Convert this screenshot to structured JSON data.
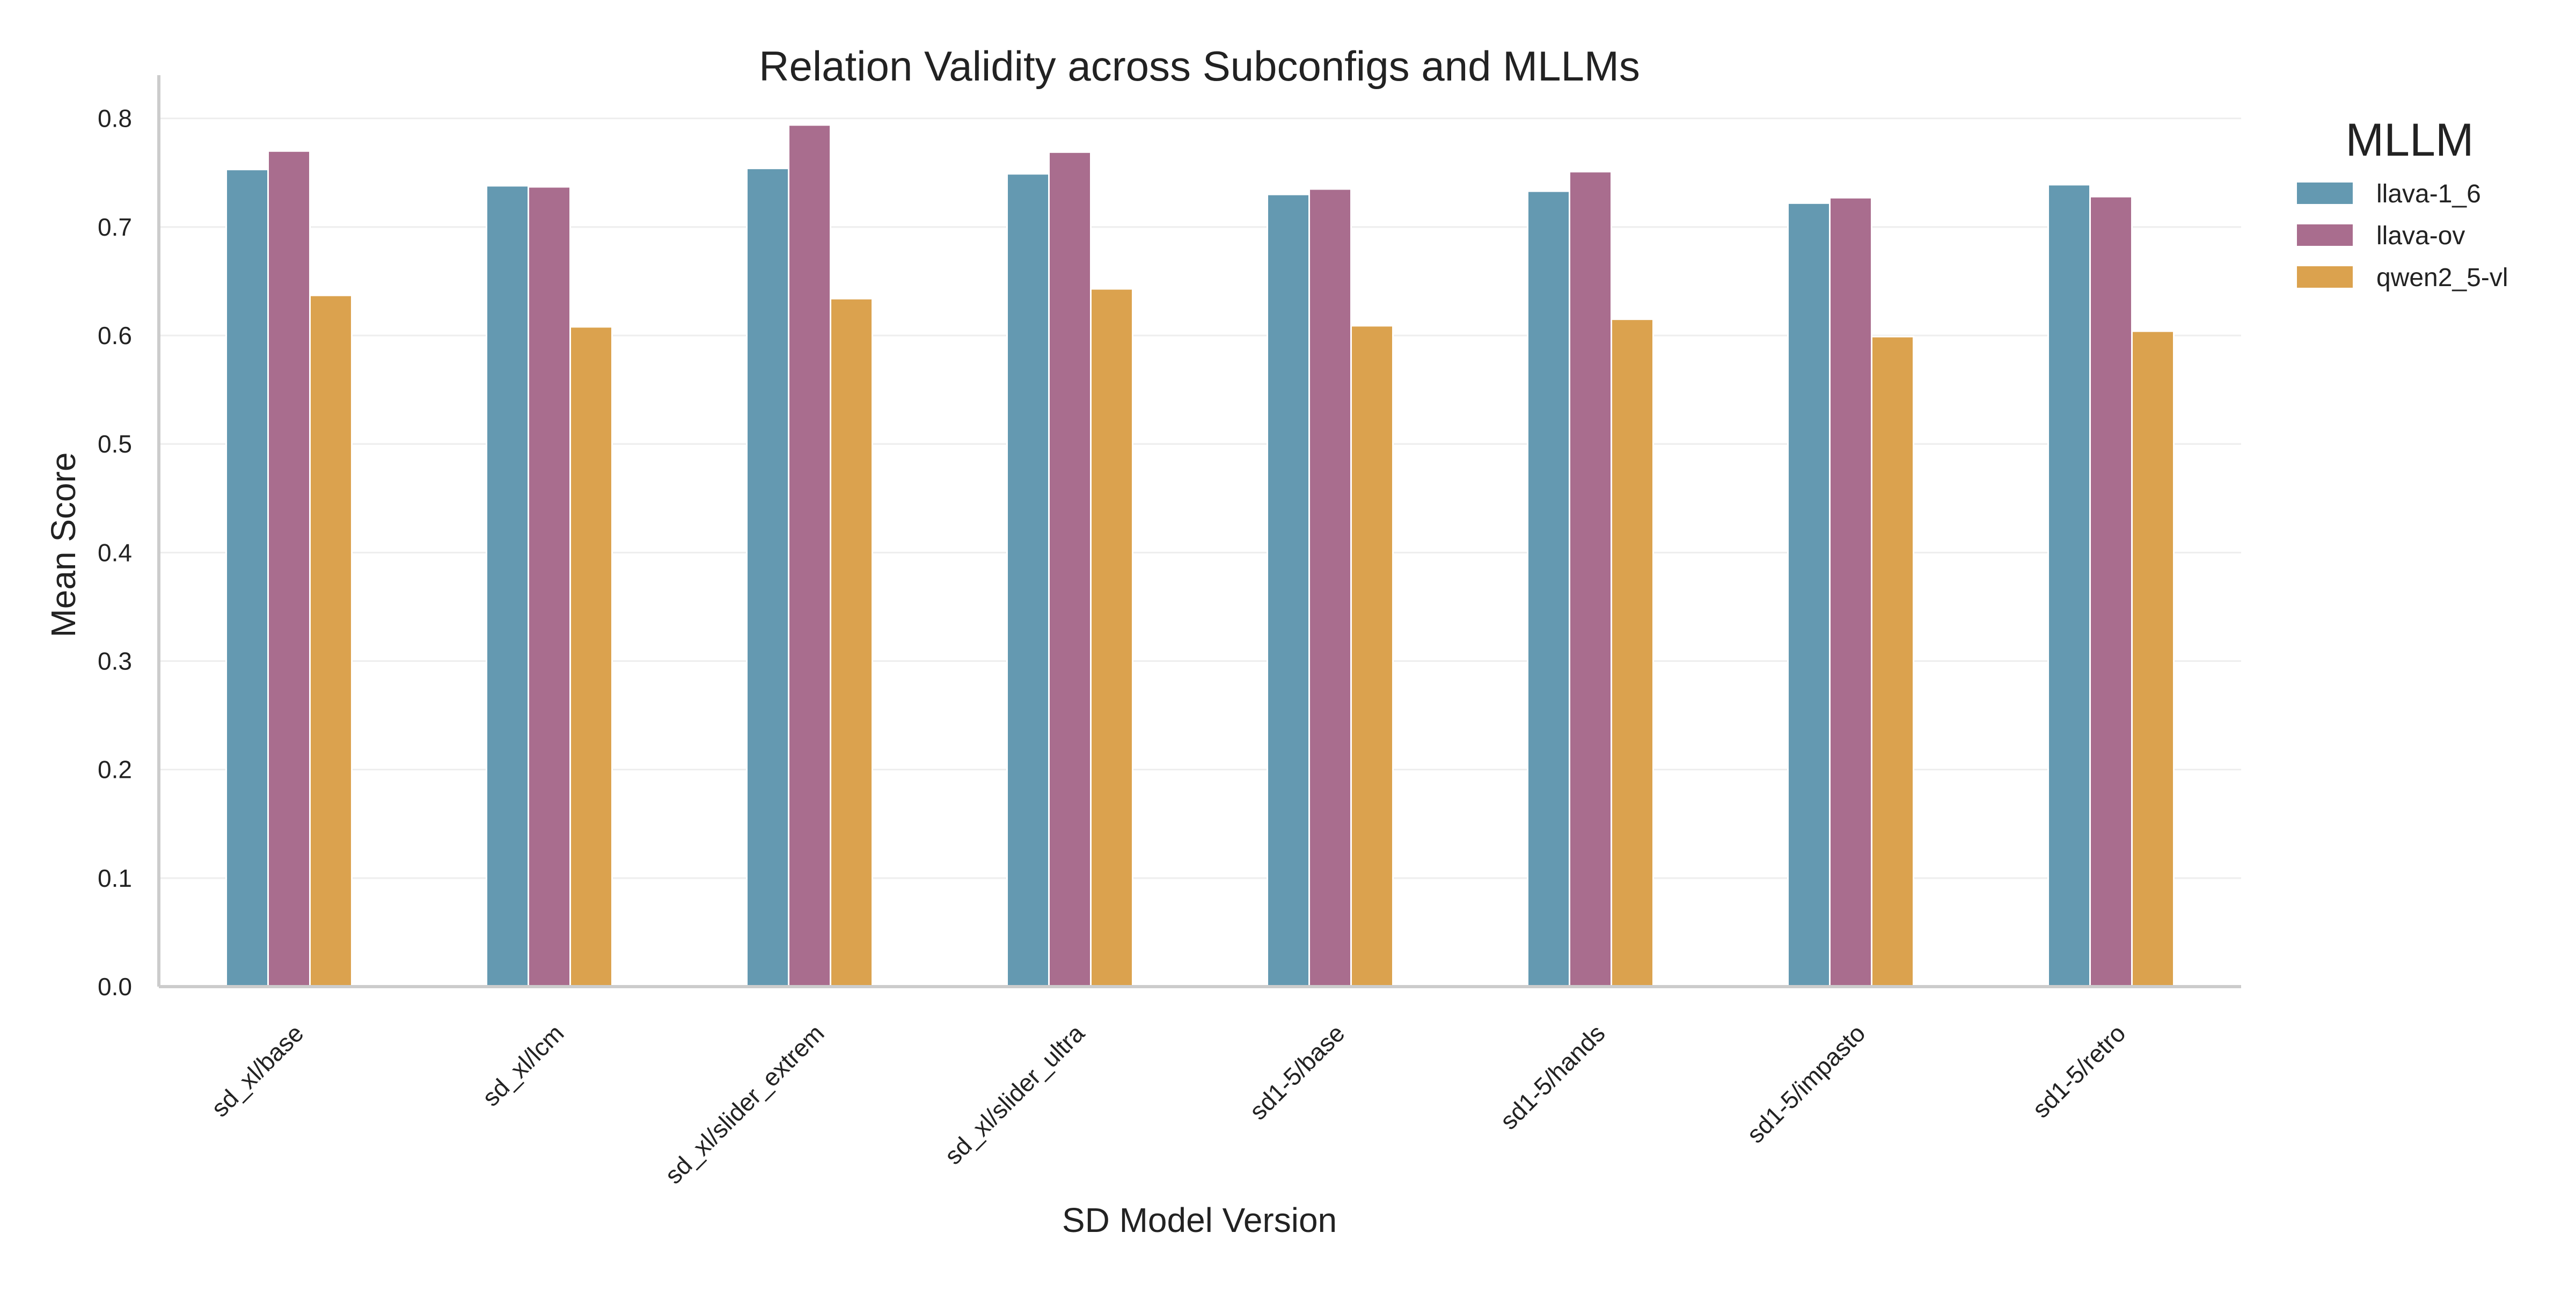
{
  "chart_data": {
    "type": "bar",
    "title": "Relation Validity across Subconfigs and MLLMs",
    "xlabel": "SD Model Version",
    "ylabel": "Mean Score",
    "ylim": [
      0,
      0.83
    ],
    "yticks": [
      0.0,
      0.1,
      0.2,
      0.3,
      0.4,
      0.5,
      0.6,
      0.7,
      0.8
    ],
    "ytick_labels": [
      "0.0",
      "0.1",
      "0.2",
      "0.3",
      "0.4",
      "0.5",
      "0.6",
      "0.7",
      "0.8"
    ],
    "grid": true,
    "categories": [
      "sd_xl/base",
      "sd_xl/lcm",
      "sd_xl/slider_extrem",
      "sd_xl/slider_ultra",
      "sd1-5/base",
      "sd1-5/hands",
      "sd1-5/impasto",
      "sd1-5/retro"
    ],
    "legend": {
      "title": "MLLM",
      "placement": "outside-right"
    },
    "series": [
      {
        "name": "llava-1_6",
        "color": "#6499b1",
        "values": [
          0.753,
          0.738,
          0.754,
          0.749,
          0.73,
          0.733,
          0.722,
          0.739
        ]
      },
      {
        "name": "llava-ov",
        "color": "#a96d8e",
        "values": [
          0.77,
          0.737,
          0.794,
          0.769,
          0.735,
          0.751,
          0.727,
          0.728
        ]
      },
      {
        "name": "qwen2_5-vl",
        "color": "#dba24e",
        "values": [
          0.637,
          0.608,
          0.634,
          0.643,
          0.609,
          0.615,
          0.599,
          0.604
        ]
      }
    ]
  }
}
